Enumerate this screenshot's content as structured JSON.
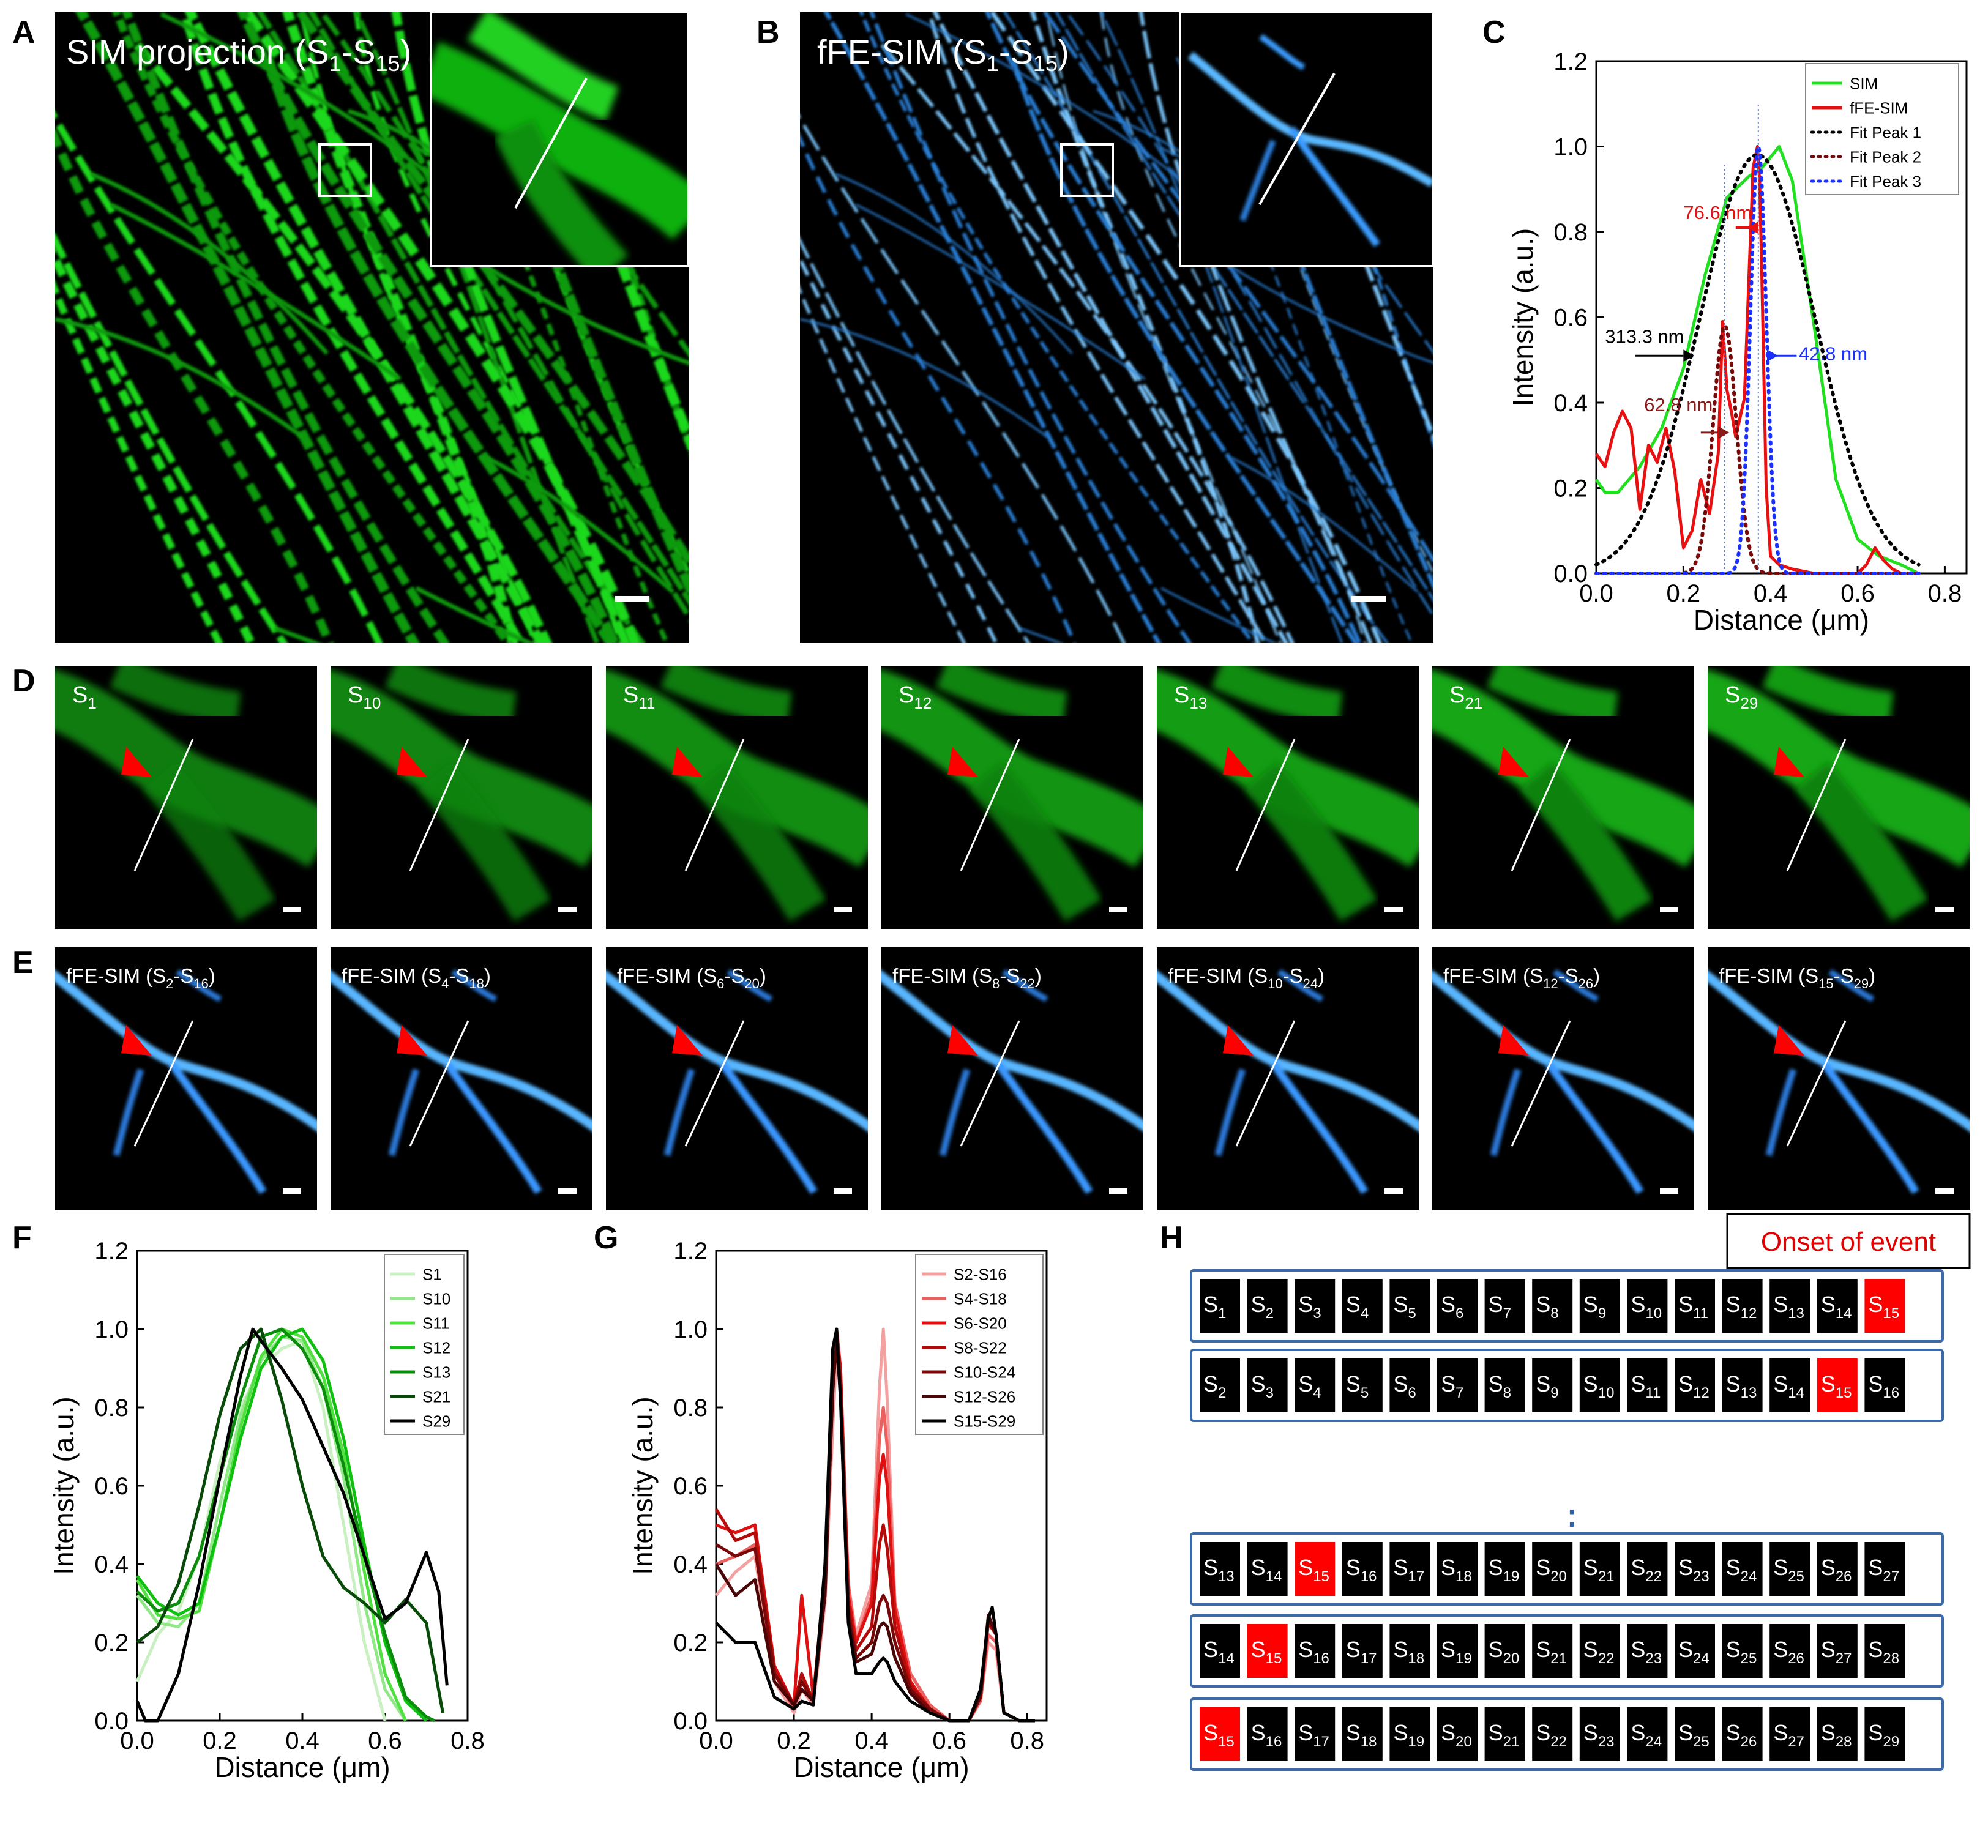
{
  "panel_letters": {
    "A": "A",
    "B": "B",
    "C": "C",
    "D": "D",
    "E": "E",
    "F": "F",
    "G": "G",
    "H": "H"
  },
  "colors": {
    "green": "#00d820",
    "blue": "#3aa0ff",
    "red_event": "#ff0000",
    "dark_green": "#0a5a0a",
    "dark_red": "#7a0000",
    "black": "#000000",
    "white": "#ffffff"
  },
  "panelA": {
    "title": "SIM projection (S",
    "sub1": "1",
    "dash": "-S",
    "sub2": "15",
    "close": ")",
    "scalebar": "scale-bar"
  },
  "panelB": {
    "title": "fFE-SIM (S",
    "sub1": "1",
    "dash": "-S",
    "sub2": "15",
    "close": ")",
    "scalebar": "scale-bar"
  },
  "panelD": {
    "tiles": [
      {
        "base": "S",
        "sub": "1"
      },
      {
        "base": "S",
        "sub": "10"
      },
      {
        "base": "S",
        "sub": "11"
      },
      {
        "base": "S",
        "sub": "12"
      },
      {
        "base": "S",
        "sub": "13"
      },
      {
        "base": "S",
        "sub": "21"
      },
      {
        "base": "S",
        "sub": "29"
      }
    ]
  },
  "panelE": {
    "tiles": [
      {
        "pre": "fFE-SIM (S",
        "s1": "2",
        "mid": "-S",
        "s2": "16",
        "post": ")"
      },
      {
        "pre": "fFE-SIM (S",
        "s1": "4",
        "mid": "-S",
        "s2": "18",
        "post": ")"
      },
      {
        "pre": "fFE-SIM (S",
        "s1": "6",
        "mid": "-S",
        "s2": "20",
        "post": ")"
      },
      {
        "pre": "fFE-SIM (S",
        "s1": "8",
        "mid": "-S",
        "s2": "22",
        "post": ")"
      },
      {
        "pre": "fFE-SIM (S",
        "s1": "10",
        "mid": "-S",
        "s2": "24",
        "post": ")"
      },
      {
        "pre": "fFE-SIM (S",
        "s1": "12",
        "mid": "-S",
        "s2": "26",
        "post": ")"
      },
      {
        "pre": "fFE-SIM (S",
        "s1": "15",
        "mid": "-S",
        "s2": "29",
        "post": ")"
      }
    ]
  },
  "chart_data": [
    {
      "id": "C",
      "type": "line",
      "xlabel": "Distance (μm)",
      "ylabel": "Intensity (a.u.)",
      "xlim": [
        0,
        0.85
      ],
      "ylim": [
        0,
        1.2
      ],
      "xticks": [
        "0.0",
        "0.2",
        "0.4",
        "0.6",
        "0.8"
      ],
      "yticks": [
        "0.0",
        "0.2",
        "0.4",
        "0.6",
        "0.8",
        "1.0",
        "1.2"
      ],
      "legend_position": "top-right",
      "series": [
        {
          "name": "SIM",
          "color": "#20e020",
          "style": "solid",
          "x": [
            0,
            0.02,
            0.05,
            0.1,
            0.15,
            0.2,
            0.25,
            0.3,
            0.35,
            0.38,
            0.42,
            0.45,
            0.5,
            0.55,
            0.6,
            0.65,
            0.7,
            0.74
          ],
          "y": [
            0.22,
            0.19,
            0.19,
            0.25,
            0.34,
            0.48,
            0.7,
            0.88,
            0.93,
            0.95,
            1.0,
            0.92,
            0.58,
            0.22,
            0.08,
            0.04,
            0.02,
            0.0
          ]
        },
        {
          "name": "fFE-SIM",
          "color": "#e81010",
          "style": "solid",
          "x": [
            0,
            0.02,
            0.04,
            0.06,
            0.08,
            0.1,
            0.12,
            0.14,
            0.16,
            0.18,
            0.2,
            0.22,
            0.24,
            0.26,
            0.28,
            0.29,
            0.3,
            0.31,
            0.32,
            0.34,
            0.35,
            0.36,
            0.37,
            0.375,
            0.38,
            0.39,
            0.4,
            0.42,
            0.45,
            0.5,
            0.55,
            0.6,
            0.62,
            0.64,
            0.66,
            0.68,
            0.7
          ],
          "y": [
            0.28,
            0.25,
            0.33,
            0.38,
            0.34,
            0.15,
            0.3,
            0.26,
            0.34,
            0.24,
            0.06,
            0.1,
            0.22,
            0.14,
            0.28,
            0.59,
            0.43,
            0.38,
            0.32,
            0.41,
            0.68,
            0.95,
            1.0,
            0.92,
            0.7,
            0.2,
            0.04,
            0.02,
            0.01,
            0.0,
            0.0,
            0.0,
            0.02,
            0.06,
            0.03,
            0.01,
            0.0
          ]
        },
        {
          "name": "Fit Peak 1",
          "color": "#000000",
          "style": "dotted",
          "gauss": {
            "a": 0.98,
            "mu": 0.37,
            "sigma": 0.133
          }
        },
        {
          "name": "Fit Peak 2",
          "color": "#7a0a0a",
          "style": "dotted",
          "gauss": {
            "a": 0.58,
            "mu": 0.295,
            "sigma": 0.0267
          }
        },
        {
          "name": "Fit Peak 3",
          "color": "#1a30ff",
          "style": "dotted",
          "gauss": {
            "a": 1.0,
            "mu": 0.372,
            "sigma": 0.0182
          }
        }
      ],
      "annotations": [
        {
          "text": "313.3 nm",
          "color": "#000000"
        },
        {
          "text": "76.6 nm",
          "color": "#e81010"
        },
        {
          "text": "42.8 nm",
          "color": "#1a30ff"
        },
        {
          "text": "62.8 nm",
          "color": "#8b1a1a"
        }
      ]
    },
    {
      "id": "F",
      "type": "line",
      "xlabel": "Distance (μm)",
      "ylabel": "Intensity (a.u.)",
      "xlim": [
        0,
        0.8
      ],
      "ylim": [
        0,
        1.2
      ],
      "xticks": [
        "0.0",
        "0.2",
        "0.4",
        "0.6",
        "0.8"
      ],
      "yticks": [
        "0.0",
        "0.2",
        "0.4",
        "0.6",
        "0.8",
        "1.0",
        "1.2"
      ],
      "legend_position": "top-right",
      "series": [
        {
          "name": "S1",
          "color": "#c8f0c0",
          "x": [
            0,
            0.05,
            0.1,
            0.15,
            0.2,
            0.25,
            0.3,
            0.35,
            0.4,
            0.45,
            0.5,
            0.55,
            0.6
          ],
          "y": [
            0.1,
            0.22,
            0.28,
            0.42,
            0.66,
            0.8,
            0.9,
            0.95,
            0.97,
            0.8,
            0.5,
            0.2,
            0.0
          ]
        },
        {
          "name": "S10",
          "color": "#90e888",
          "x": [
            0,
            0.05,
            0.1,
            0.15,
            0.2,
            0.25,
            0.3,
            0.35,
            0.4,
            0.45,
            0.5,
            0.55,
            0.6,
            0.65
          ],
          "y": [
            0.32,
            0.25,
            0.24,
            0.3,
            0.55,
            0.78,
            0.92,
            0.98,
            0.97,
            0.85,
            0.62,
            0.3,
            0.08,
            0.0
          ]
        },
        {
          "name": "S11",
          "color": "#50e040",
          "x": [
            0,
            0.05,
            0.1,
            0.15,
            0.2,
            0.25,
            0.3,
            0.35,
            0.4,
            0.45,
            0.5,
            0.55,
            0.6,
            0.65
          ],
          "y": [
            0.36,
            0.27,
            0.26,
            0.28,
            0.5,
            0.75,
            0.93,
            1.0,
            0.98,
            0.88,
            0.68,
            0.38,
            0.12,
            0.0
          ]
        },
        {
          "name": "S12",
          "color": "#10c010",
          "x": [
            0,
            0.05,
            0.1,
            0.15,
            0.2,
            0.25,
            0.3,
            0.35,
            0.4,
            0.45,
            0.5,
            0.55,
            0.6,
            0.65,
            0.7
          ],
          "y": [
            0.37,
            0.3,
            0.27,
            0.3,
            0.5,
            0.72,
            0.9,
            0.98,
            1.0,
            0.92,
            0.72,
            0.45,
            0.2,
            0.05,
            0.0
          ]
        },
        {
          "name": "S13",
          "color": "#0c8c0c",
          "x": [
            0,
            0.05,
            0.1,
            0.15,
            0.2,
            0.25,
            0.3,
            0.35,
            0.4,
            0.45,
            0.5,
            0.55,
            0.6,
            0.65,
            0.7,
            0.72
          ],
          "y": [
            0.33,
            0.28,
            0.3,
            0.42,
            0.62,
            0.82,
            0.98,
            1.0,
            0.95,
            0.85,
            0.65,
            0.42,
            0.22,
            0.06,
            0.01,
            0.0
          ]
        },
        {
          "name": "S21",
          "color": "#084a08",
          "x": [
            0,
            0.05,
            0.1,
            0.15,
            0.2,
            0.25,
            0.3,
            0.35,
            0.4,
            0.45,
            0.5,
            0.55,
            0.6,
            0.65,
            0.7,
            0.74
          ],
          "y": [
            0.2,
            0.24,
            0.35,
            0.55,
            0.78,
            0.95,
            1.0,
            0.82,
            0.6,
            0.42,
            0.34,
            0.3,
            0.25,
            0.31,
            0.25,
            0.02
          ]
        },
        {
          "name": "S29",
          "color": "#000000",
          "x": [
            0,
            0.02,
            0.05,
            0.1,
            0.15,
            0.2,
            0.25,
            0.28,
            0.3,
            0.35,
            0.4,
            0.45,
            0.5,
            0.55,
            0.6,
            0.65,
            0.7,
            0.73,
            0.75
          ],
          "y": [
            0.05,
            0.0,
            0.0,
            0.12,
            0.35,
            0.62,
            0.88,
            1.0,
            0.97,
            0.9,
            0.82,
            0.7,
            0.58,
            0.42,
            0.26,
            0.3,
            0.43,
            0.33,
            0.09
          ]
        }
      ]
    },
    {
      "id": "G",
      "type": "line",
      "xlabel": "Distance (μm)",
      "ylabel": "Intensity (a.u.)",
      "xlim": [
        0,
        0.85
      ],
      "ylim": [
        0,
        1.2
      ],
      "xticks": [
        "0.0",
        "0.2",
        "0.4",
        "0.6",
        "0.8"
      ],
      "yticks": [
        "0.0",
        "0.2",
        "0.4",
        "0.6",
        "0.8",
        "1.0",
        "1.2"
      ],
      "legend_position": "top-right",
      "series": [
        {
          "name": "S2-S16",
          "color": "#f4a0a0",
          "x": [
            0,
            0.05,
            0.1,
            0.15,
            0.2,
            0.22,
            0.25,
            0.28,
            0.3,
            0.31,
            0.32,
            0.34,
            0.36,
            0.4,
            0.42,
            0.43,
            0.44,
            0.46,
            0.5,
            0.55,
            0.6,
            0.65,
            0.68,
            0.7,
            0.72,
            0.74,
            0.78,
            0.82
          ],
          "y": [
            0.32,
            0.38,
            0.42,
            0.1,
            0.02,
            0.08,
            0.04,
            0.3,
            0.75,
            0.95,
            0.88,
            0.35,
            0.22,
            0.35,
            0.85,
            1.0,
            0.82,
            0.3,
            0.12,
            0.04,
            0.0,
            0.0,
            0.05,
            0.2,
            0.18,
            0.02,
            0.0,
            0.0
          ]
        },
        {
          "name": "S4-S18",
          "color": "#ec6060",
          "x": [
            0,
            0.05,
            0.1,
            0.15,
            0.2,
            0.22,
            0.25,
            0.28,
            0.3,
            0.31,
            0.32,
            0.34,
            0.36,
            0.4,
            0.42,
            0.43,
            0.44,
            0.46,
            0.5,
            0.55,
            0.6,
            0.65,
            0.68,
            0.7,
            0.72,
            0.74,
            0.78,
            0.82
          ],
          "y": [
            0.4,
            0.42,
            0.45,
            0.12,
            0.03,
            0.1,
            0.05,
            0.35,
            0.85,
            0.98,
            0.9,
            0.35,
            0.2,
            0.32,
            0.72,
            0.8,
            0.7,
            0.3,
            0.12,
            0.04,
            0.0,
            0.0,
            0.05,
            0.22,
            0.2,
            0.02,
            0.0,
            0.0
          ]
        },
        {
          "name": "S6-S20",
          "color": "#e01010",
          "x": [
            0,
            0.05,
            0.1,
            0.15,
            0.2,
            0.22,
            0.25,
            0.28,
            0.3,
            0.31,
            0.32,
            0.34,
            0.36,
            0.4,
            0.42,
            0.43,
            0.44,
            0.46,
            0.5,
            0.55,
            0.6,
            0.65,
            0.68,
            0.7,
            0.72,
            0.74,
            0.78,
            0.82
          ],
          "y": [
            0.5,
            0.48,
            0.5,
            0.14,
            0.04,
            0.32,
            0.06,
            0.38,
            0.9,
            1.0,
            0.9,
            0.32,
            0.2,
            0.3,
            0.62,
            0.68,
            0.6,
            0.28,
            0.1,
            0.03,
            0.0,
            0.0,
            0.06,
            0.25,
            0.22,
            0.02,
            0.0,
            0.0
          ]
        },
        {
          "name": "S8-S22",
          "color": "#b40a0a",
          "x": [
            0,
            0.05,
            0.1,
            0.15,
            0.2,
            0.22,
            0.25,
            0.28,
            0.3,
            0.31,
            0.32,
            0.34,
            0.36,
            0.4,
            0.42,
            0.43,
            0.44,
            0.46,
            0.5,
            0.55,
            0.6,
            0.65,
            0.68,
            0.7,
            0.72,
            0.74,
            0.78,
            0.82
          ],
          "y": [
            0.54,
            0.46,
            0.48,
            0.13,
            0.04,
            0.12,
            0.05,
            0.36,
            0.88,
            0.99,
            0.88,
            0.3,
            0.18,
            0.24,
            0.45,
            0.5,
            0.44,
            0.24,
            0.09,
            0.03,
            0.0,
            0.0,
            0.06,
            0.25,
            0.22,
            0.02,
            0.0,
            0.0
          ]
        },
        {
          "name": "S10-S24",
          "color": "#7a0808",
          "x": [
            0,
            0.05,
            0.1,
            0.15,
            0.2,
            0.22,
            0.25,
            0.28,
            0.3,
            0.31,
            0.32,
            0.34,
            0.36,
            0.4,
            0.42,
            0.43,
            0.44,
            0.46,
            0.5,
            0.55,
            0.6,
            0.65,
            0.68,
            0.7,
            0.72,
            0.74,
            0.78,
            0.82
          ],
          "y": [
            0.45,
            0.42,
            0.44,
            0.12,
            0.04,
            0.1,
            0.05,
            0.34,
            0.85,
            0.98,
            0.85,
            0.28,
            0.16,
            0.2,
            0.3,
            0.32,
            0.3,
            0.2,
            0.08,
            0.03,
            0.0,
            0.0,
            0.06,
            0.26,
            0.22,
            0.02,
            0.0,
            0.0
          ]
        },
        {
          "name": "S12-S26",
          "color": "#4a0606",
          "x": [
            0,
            0.05,
            0.1,
            0.15,
            0.2,
            0.22,
            0.25,
            0.28,
            0.3,
            0.31,
            0.32,
            0.34,
            0.36,
            0.4,
            0.42,
            0.43,
            0.44,
            0.46,
            0.5,
            0.55,
            0.6,
            0.65,
            0.68,
            0.7,
            0.72,
            0.74,
            0.78,
            0.82
          ],
          "y": [
            0.4,
            0.32,
            0.36,
            0.1,
            0.04,
            0.08,
            0.05,
            0.32,
            0.84,
            0.97,
            0.82,
            0.26,
            0.15,
            0.17,
            0.24,
            0.25,
            0.24,
            0.16,
            0.07,
            0.02,
            0.0,
            0.0,
            0.07,
            0.27,
            0.22,
            0.02,
            0.0,
            0.0
          ]
        },
        {
          "name": "S15-S29",
          "color": "#000000",
          "x": [
            0,
            0.05,
            0.1,
            0.15,
            0.2,
            0.22,
            0.25,
            0.28,
            0.3,
            0.31,
            0.32,
            0.34,
            0.36,
            0.4,
            0.42,
            0.43,
            0.44,
            0.46,
            0.5,
            0.55,
            0.6,
            0.65,
            0.68,
            0.7,
            0.71,
            0.72,
            0.74,
            0.78,
            0.82
          ],
          "y": [
            0.25,
            0.2,
            0.2,
            0.06,
            0.03,
            0.05,
            0.04,
            0.4,
            0.95,
            1.0,
            0.82,
            0.25,
            0.12,
            0.12,
            0.15,
            0.16,
            0.15,
            0.1,
            0.05,
            0.02,
            0.0,
            0.0,
            0.08,
            0.26,
            0.29,
            0.22,
            0.02,
            0.0,
            0.0
          ]
        }
      ]
    }
  ],
  "panelH": {
    "onset_label": "Onset of event",
    "rows": [
      {
        "start": 1,
        "end": 15,
        "highlight": 15
      },
      {
        "start": 2,
        "end": 16,
        "highlight": 15
      },
      {
        "start": 13,
        "end": 27,
        "highlight": 15
      },
      {
        "start": 14,
        "end": 28,
        "highlight": 15
      },
      {
        "start": 15,
        "end": 29,
        "highlight": 15
      }
    ],
    "frame_prefix": "S",
    "ellipsis": "⋮"
  }
}
